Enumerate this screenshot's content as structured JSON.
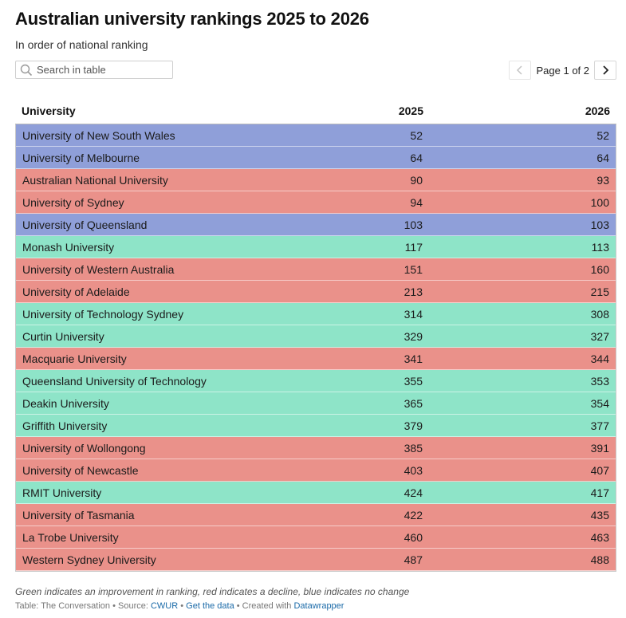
{
  "title": "Australian university rankings 2025 to 2026",
  "subtitle": "In order of national ranking",
  "search": {
    "placeholder": "Search in table"
  },
  "pagination": {
    "label": "Page 1 of 2"
  },
  "colors": {
    "improvement": "#8ee4c8",
    "decline": "#ea918a",
    "no_change": "#8f9fd9"
  },
  "table": {
    "headers": [
      "University",
      "2025",
      "2026"
    ],
    "rows": [
      {
        "name": "University of New South Wales",
        "y2025": "52",
        "y2026": "52",
        "status": "no_change"
      },
      {
        "name": "University of Melbourne",
        "y2025": "64",
        "y2026": "64",
        "status": "no_change"
      },
      {
        "name": "Australian National University",
        "y2025": "90",
        "y2026": "93",
        "status": "decline"
      },
      {
        "name": "University of Sydney",
        "y2025": "94",
        "y2026": "100",
        "status": "decline"
      },
      {
        "name": "University of Queensland",
        "y2025": "103",
        "y2026": "103",
        "status": "no_change"
      },
      {
        "name": "Monash University",
        "y2025": "117",
        "y2026": "113",
        "status": "improvement"
      },
      {
        "name": "University of Western Australia",
        "y2025": "151",
        "y2026": "160",
        "status": "decline"
      },
      {
        "name": "University of Adelaide",
        "y2025": "213",
        "y2026": "215",
        "status": "decline"
      },
      {
        "name": "University of Technology Sydney",
        "y2025": "314",
        "y2026": "308",
        "status": "improvement"
      },
      {
        "name": "Curtin University",
        "y2025": "329",
        "y2026": "327",
        "status": "improvement"
      },
      {
        "name": "Macquarie University",
        "y2025": "341",
        "y2026": "344",
        "status": "decline"
      },
      {
        "name": "Queensland University of Technology",
        "y2025": "355",
        "y2026": "353",
        "status": "improvement"
      },
      {
        "name": "Deakin University",
        "y2025": "365",
        "y2026": "354",
        "status": "improvement"
      },
      {
        "name": "Griffith University",
        "y2025": "379",
        "y2026": "377",
        "status": "improvement"
      },
      {
        "name": "University of Wollongong",
        "y2025": "385",
        "y2026": "391",
        "status": "decline"
      },
      {
        "name": "University of Newcastle",
        "y2025": "403",
        "y2026": "407",
        "status": "decline"
      },
      {
        "name": "RMIT University",
        "y2025": "424",
        "y2026": "417",
        "status": "improvement"
      },
      {
        "name": "University of Tasmania",
        "y2025": "422",
        "y2026": "435",
        "status": "decline"
      },
      {
        "name": "La Trobe University",
        "y2025": "460",
        "y2026": "463",
        "status": "decline"
      },
      {
        "name": "Western Sydney University",
        "y2025": "487",
        "y2026": "488",
        "status": "decline"
      }
    ]
  },
  "note": "Green indicates an improvement in ranking, red indicates a decline, blue indicates no change",
  "footer": {
    "prefix": "Table: The Conversation • Source: ",
    "source_link": "CWUR",
    "separator1": " • ",
    "data_link": "Get the data",
    "separator2": " • Created with ",
    "tool_link": "Datawrapper"
  }
}
